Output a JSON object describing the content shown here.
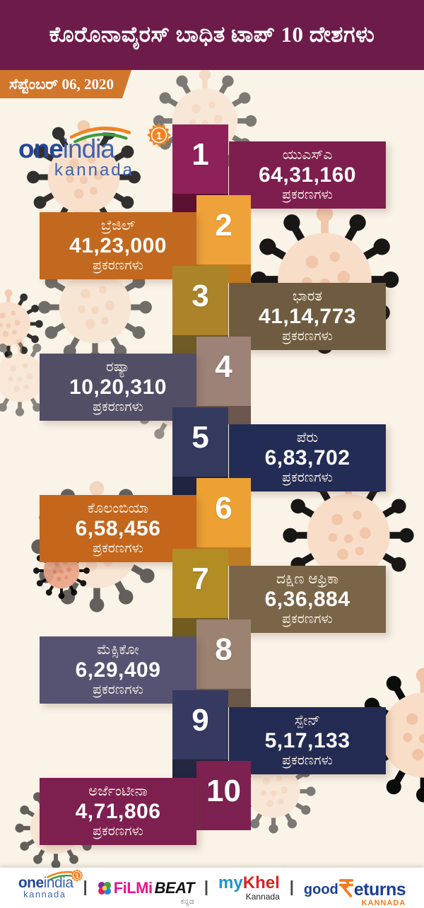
{
  "header": {
    "title": "ಕೊರೊನಾವೈರಸ್ ಬಾಧಿತ ಟಾಪ್ 10 ದೇಶಗಳು",
    "bg_color": "#6d1b49"
  },
  "date_ribbon": {
    "text": "ಸೆಪ್ಟೆಂಬರ್ 06, 2020",
    "bg_color": "#d1762b"
  },
  "logo": {
    "one": "one",
    "india": "india",
    "badge": "1",
    "kannada": "kannada"
  },
  "cases_label": "ಪ್ರಕರಣಗಳು",
  "entries": [
    {
      "rank": "1",
      "country": "ಯುಎಸ್‌ಎ",
      "cases": "64,31,160",
      "content_bg": "#7d1e4e",
      "rank_bg": "#8e2157",
      "rank_dark": "#5c1133"
    },
    {
      "rank": "2",
      "country": "ಬ್ರೆಜಿಲ್",
      "cases": "41,23,000",
      "content_bg": "#c2691f",
      "rank_bg": "#f0a23a",
      "rank_dark": "#c17a20"
    },
    {
      "rank": "3",
      "country": "ಭಾರತ",
      "cases": "41,14,773",
      "content_bg": "#6f5c40",
      "rank_bg": "#ab8429",
      "rank_dark": "#6e5a24"
    },
    {
      "rank": "4",
      "country": "ರಷ್ಯಾ",
      "cases": "10,20,310",
      "content_bg": "#514e66",
      "rank_bg": "#9c8277",
      "rank_dark": "#6c564e"
    },
    {
      "rank": "5",
      "country": "ಪೆರು",
      "cases": "6,83,702",
      "content_bg": "#232c54",
      "rank_bg": "#333a5e",
      "rank_dark": "#1f2441"
    },
    {
      "rank": "6",
      "country": "ಕೊಲಂಬಿಯಾ",
      "cases": "6,58,456",
      "content_bg": "#c4661c",
      "rank_bg": "#eda133",
      "rank_dark": "#bd7d22"
    },
    {
      "rank": "7",
      "country": "ದಕ್ಷಿಣ ಆಫ್ರಿಕಾ",
      "cases": "6,36,884",
      "content_bg": "#7b6548",
      "rank_bg": "#b28d24",
      "rank_dark": "#715c1e"
    },
    {
      "rank": "8",
      "country": "ಮೆಕ್ಸಿಕೋ",
      "cases": "6,29,409",
      "content_bg": "#565372",
      "rank_bg": "#9c8270",
      "rank_dark": "#6a584b"
    },
    {
      "rank": "9",
      "country": "ಸ್ಪೇನ್",
      "cases": "5,17,133",
      "content_bg": "#242b52",
      "rank_bg": "#363a60",
      "rank_dark": "#23263f"
    },
    {
      "rank": "10",
      "country": "ಅರ್ಜೆಂಟೀನಾ",
      "cases": "4,71,806",
      "content_bg": "#7d2050",
      "rank_bg": "#7c2150",
      "rank_dark": "#541434"
    }
  ],
  "chart_data": {
    "type": "table",
    "title": "ಕೊರೊನಾವೈರಸ್ ಬಾಧಿತ ಟಾಪ್ 10 ದೇಶಗಳು",
    "date": "ಸೆಪ್ಟೆಂಬರ್ 06, 2020",
    "unit_label": "ಪ್ರಕರಣಗಳು",
    "ranks": [
      1,
      2,
      3,
      4,
      5,
      6,
      7,
      8,
      9,
      10
    ],
    "categories": [
      "ಯುಎಸ್‌ಎ",
      "ಬ್ರೆಜಿಲ್",
      "ಭಾರತ",
      "ರಷ್ಯಾ",
      "ಪೆರು",
      "ಕೊಲಂಬಿಯಾ",
      "ದಕ್ಷಿಣ ಆಫ್ರಿಕಾ",
      "ಮೆಕ್ಸಿಕೋ",
      "ಸ್ಪೇನ್",
      "ಅರ್ಜೆಂಟೀನಾ"
    ],
    "values": [
      6431160,
      4123000,
      4114773,
      1020310,
      683702,
      658456,
      636884,
      629409,
      517133,
      471806
    ],
    "values_formatted": [
      "64,31,160",
      "41,23,000",
      "41,14,773",
      "10,20,310",
      "6,83,702",
      "6,58,456",
      "6,36,884",
      "6,29,409",
      "5,17,133",
      "4,71,806"
    ]
  },
  "footer": {
    "oneindia": {
      "one": "one",
      "india": "india",
      "badge": "1",
      "kannada": "kannada"
    },
    "separator": "|",
    "filmibeat": {
      "filmi": "FiLMi",
      "beat": "BEAT",
      "sub": "ಕನ್ನಡ"
    },
    "mykhel": {
      "my": "my",
      "khel": "Khel",
      "sub": "Kannada"
    },
    "goodreturns": {
      "good": "good",
      "eturns": "eturns",
      "sub": "KANNADA"
    }
  },
  "colors": {
    "accent_orange": "#f47b20",
    "brand_blue": "#23469b",
    "green": "#3d9b3a",
    "virus_body": "#f8dcc6",
    "virus_spike": "#f1c2a3"
  }
}
